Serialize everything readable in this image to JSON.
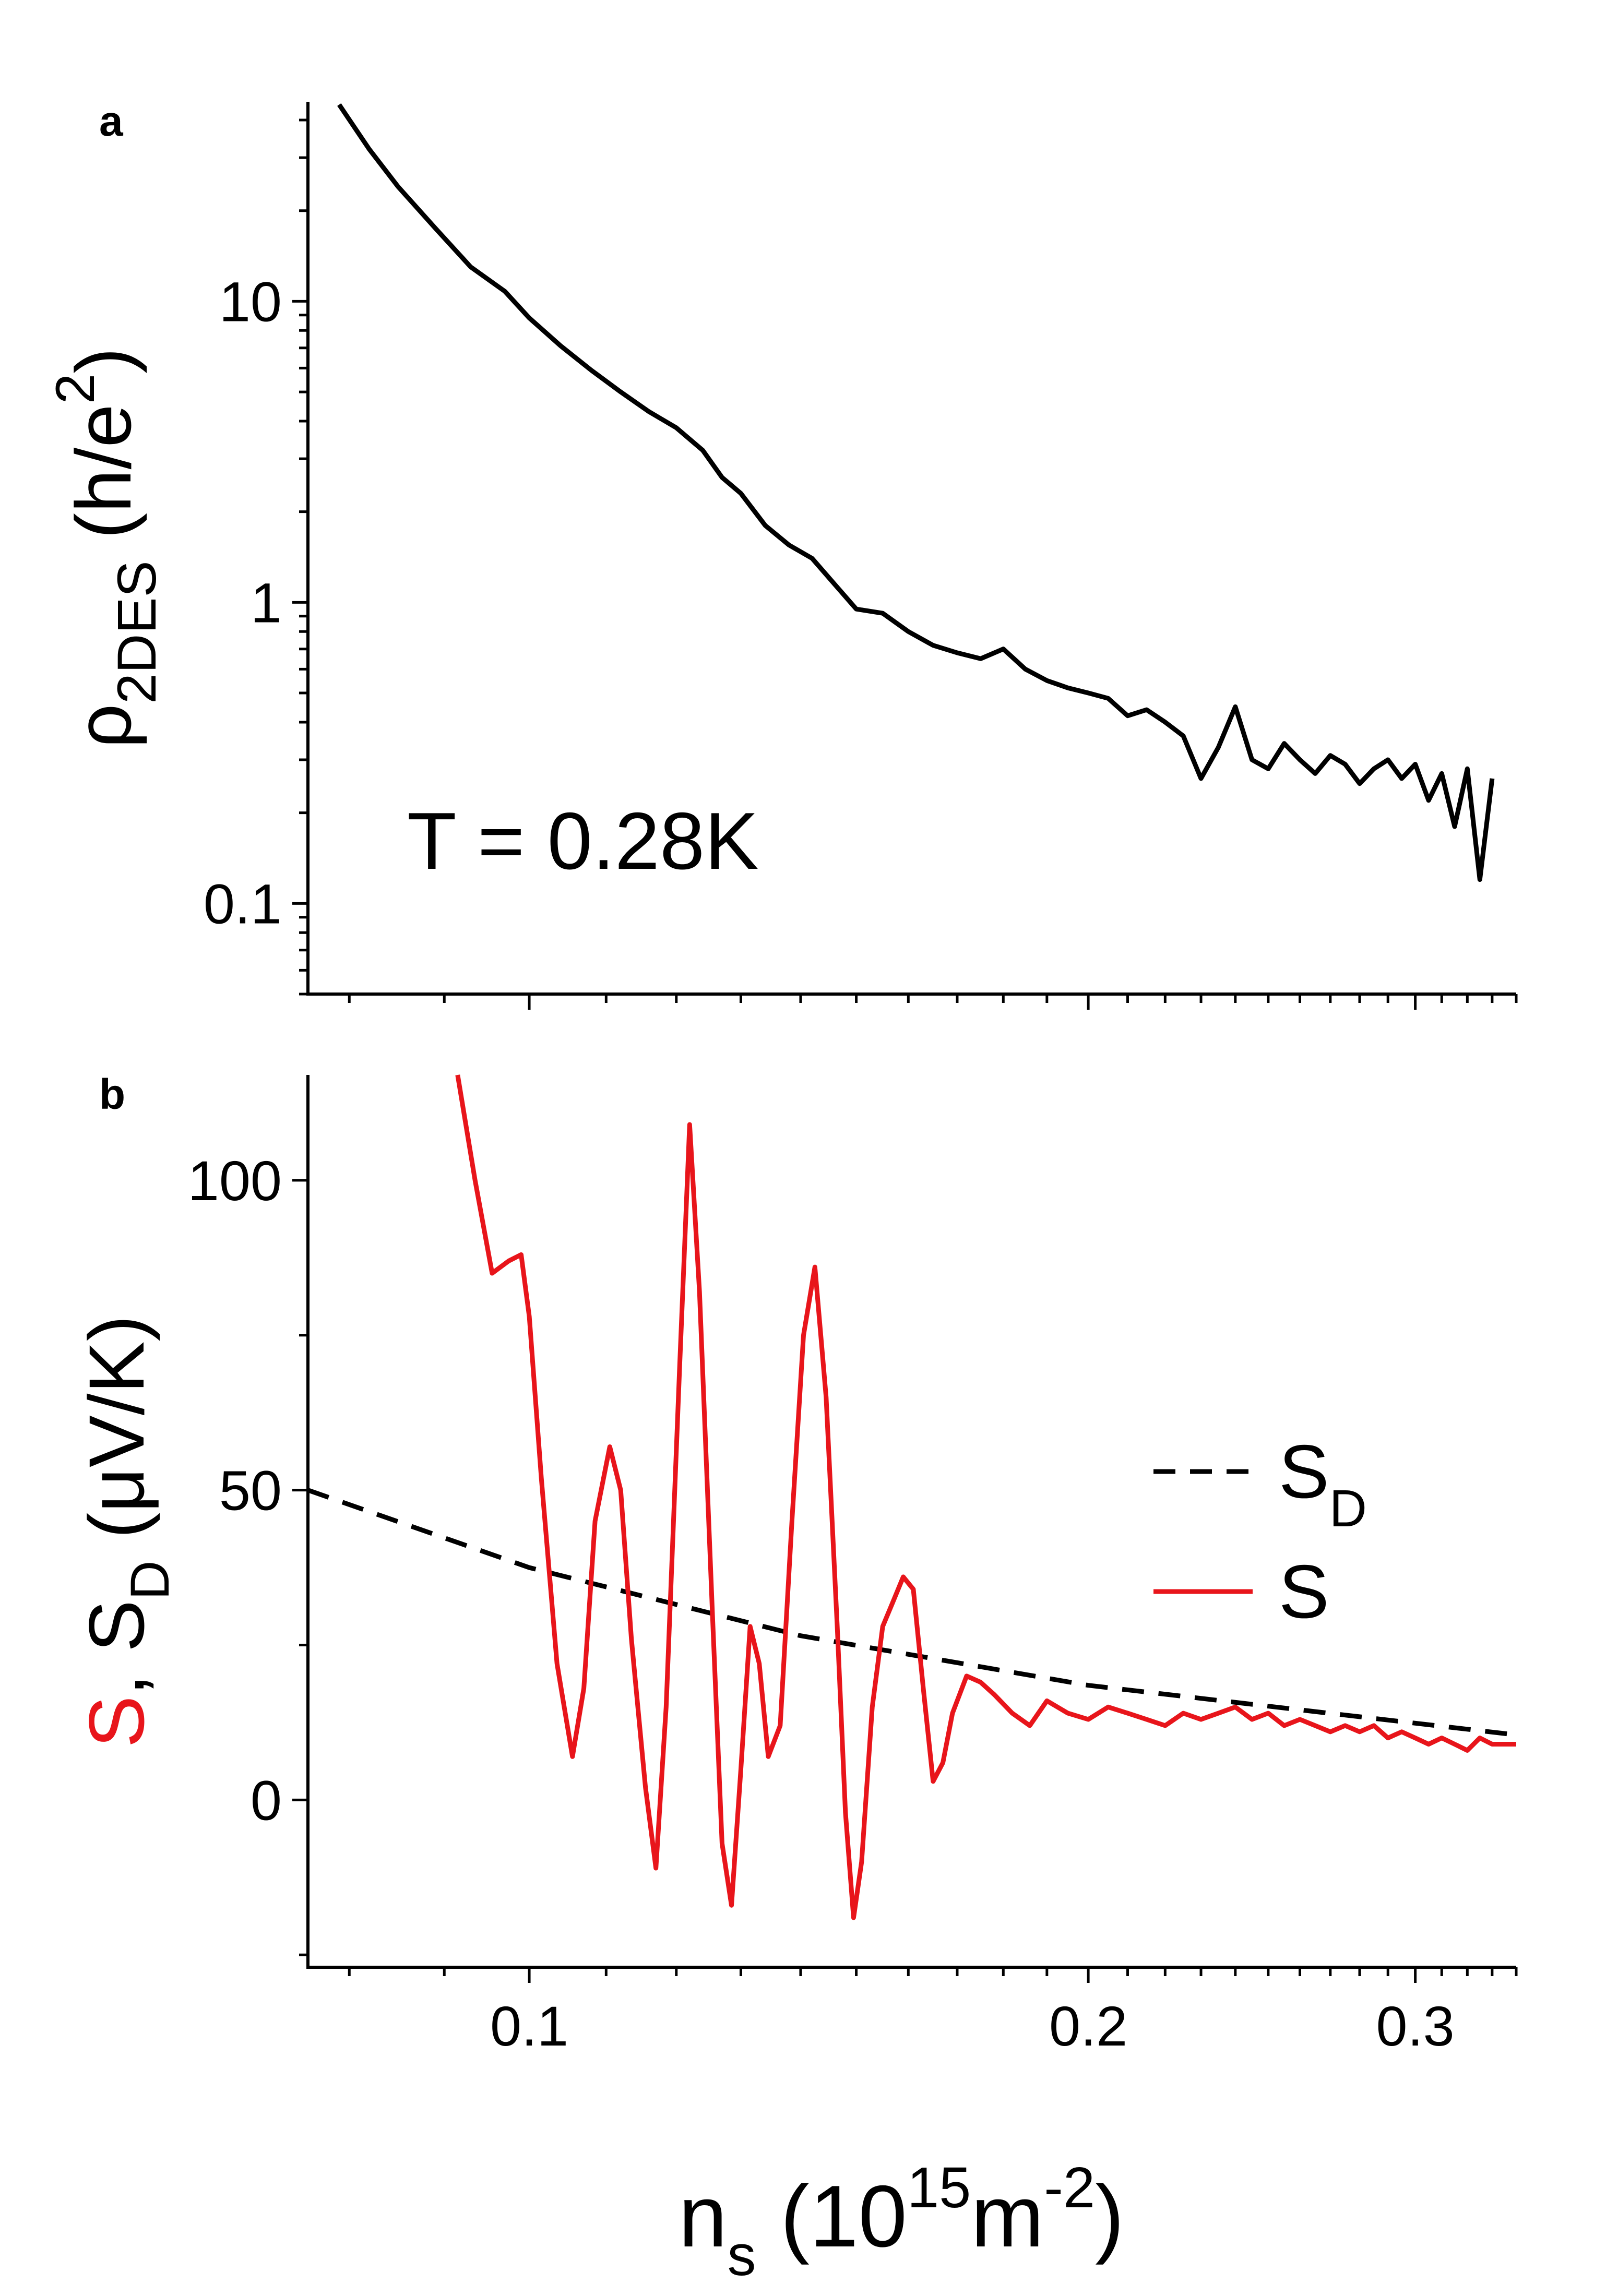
{
  "figure": {
    "x_axis_label": "n",
    "x_axis_label_sub": "s",
    "x_axis_label_unit_open": " (10",
    "x_axis_label_unit_exp": "15",
    "x_axis_label_unit_m": "m",
    "x_axis_label_unit_exp2": "-2",
    "x_axis_label_unit_close": ")"
  },
  "chart_data": [
    {
      "type": "line",
      "panel_label": "a",
      "ylabel": "ρ",
      "ylabel_sub": "2DES",
      "ylabel_unit_open": " (h/e",
      "ylabel_unit_exp": "2",
      "ylabel_unit_close": ")",
      "annotation": "T = 0.28K",
      "xscale": "log",
      "yscale": "log",
      "xlim": [
        0.076,
        0.34
      ],
      "ylim": [
        0.05,
        46
      ],
      "y_ticks": [
        {
          "value": 10,
          "label": "10"
        },
        {
          "value": 1,
          "label": "1"
        },
        {
          "value": 0.1,
          "label": "0.1"
        }
      ],
      "series": [
        {
          "name": "rho_2DES",
          "color": "#000000",
          "style": "solid",
          "x": [
            0.079,
            0.082,
            0.085,
            0.089,
            0.093,
            0.097,
            0.1,
            0.104,
            0.108,
            0.112,
            0.116,
            0.12,
            0.124,
            0.127,
            0.13,
            0.134,
            0.138,
            0.142,
            0.146,
            0.15,
            0.155,
            0.16,
            0.165,
            0.17,
            0.175,
            0.18,
            0.185,
            0.19,
            0.195,
            0.2,
            0.205,
            0.21,
            0.215,
            0.22,
            0.225,
            0.23,
            0.235,
            0.24,
            0.245,
            0.25,
            0.255,
            0.26,
            0.265,
            0.27,
            0.275,
            0.28,
            0.285,
            0.29,
            0.295,
            0.3,
            0.305,
            0.31,
            0.315,
            0.32,
            0.325,
            0.33
          ],
          "y": [
            45,
            32,
            24,
            17.5,
            13,
            10.8,
            8.8,
            7.1,
            5.9,
            5.0,
            4.3,
            3.8,
            3.2,
            2.6,
            2.3,
            1.8,
            1.55,
            1.4,
            1.15,
            0.95,
            0.92,
            0.8,
            0.72,
            0.68,
            0.65,
            0.7,
            0.6,
            0.55,
            0.52,
            0.5,
            0.48,
            0.42,
            0.44,
            0.4,
            0.36,
            0.26,
            0.33,
            0.45,
            0.3,
            0.28,
            0.34,
            0.3,
            0.27,
            0.31,
            0.29,
            0.25,
            0.28,
            0.3,
            0.26,
            0.29,
            0.22,
            0.27,
            0.18,
            0.28,
            0.12,
            0.26
          ]
        }
      ]
    },
    {
      "type": "line",
      "panel_label": "b",
      "ylabel_parts": [
        "S",
        ", S",
        "D",
        " (μV/K)"
      ],
      "ylabel_colors": [
        "#e8151b",
        "#000000"
      ],
      "xscale": "log",
      "yscale": "linear",
      "xlim": [
        0.076,
        0.34
      ],
      "ylim": [
        -27,
        117
      ],
      "x_ticks": [
        {
          "value": 0.1,
          "label": "0.1"
        },
        {
          "value": 0.2,
          "label": "0.2"
        },
        {
          "value": 0.3,
          "label": "0.3"
        }
      ],
      "y_ticks": [
        {
          "value": 100,
          "label": "100"
        },
        {
          "value": 50,
          "label": "50"
        },
        {
          "value": 0,
          "label": "0"
        }
      ],
      "legend_position": "right",
      "series": [
        {
          "name": "S_D",
          "legend_label": "S",
          "legend_sub": "D",
          "color": "#000000",
          "style": "dashed",
          "x": [
            0.076,
            0.1,
            0.14,
            0.2,
            0.34
          ],
          "y": [
            50,
            37.5,
            26.5,
            18.5,
            10.5
          ]
        },
        {
          "name": "S",
          "legend_label": "S",
          "color": "#e8151b",
          "style": "solid",
          "x": [
            0.0915,
            0.0935,
            0.0955,
            0.0975,
            0.099,
            0.1,
            0.1015,
            0.1035,
            0.1055,
            0.107,
            0.1085,
            0.1105,
            0.112,
            0.1135,
            0.1155,
            0.117,
            0.1185,
            0.1205,
            0.122,
            0.1235,
            0.1255,
            0.127,
            0.1285,
            0.13,
            0.1315,
            0.133,
            0.1345,
            0.1365,
            0.1385,
            0.1405,
            0.1425,
            0.1445,
            0.1465,
            0.148,
            0.1495,
            0.151,
            0.153,
            0.155,
            0.157,
            0.159,
            0.161,
            0.163,
            0.165,
            0.167,
            0.169,
            0.172,
            0.175,
            0.178,
            0.182,
            0.186,
            0.19,
            0.195,
            0.2,
            0.205,
            0.21,
            0.215,
            0.22,
            0.225,
            0.23,
            0.235,
            0.24,
            0.245,
            0.25,
            0.255,
            0.26,
            0.265,
            0.27,
            0.275,
            0.28,
            0.285,
            0.29,
            0.295,
            0.3,
            0.305,
            0.31,
            0.315,
            0.32,
            0.325,
            0.33,
            0.335,
            0.34
          ],
          "y": [
            117,
            100,
            85,
            87,
            88,
            78,
            52,
            22,
            7,
            18,
            45,
            57,
            50,
            26,
            2,
            -11,
            15,
            70,
            109,
            82,
            30,
            -7,
            -17,
            5,
            28,
            22,
            7,
            12,
            45,
            75,
            86,
            65,
            28,
            -2,
            -19,
            -10,
            15,
            28,
            32,
            36,
            34,
            18,
            3,
            6,
            14,
            20,
            19,
            17,
            14,
            12,
            16,
            14,
            13,
            15,
            14,
            13,
            12,
            14,
            13,
            14,
            15,
            13,
            14,
            12,
            13,
            12,
            11,
            12,
            11,
            12,
            10,
            11,
            10,
            9,
            10,
            9,
            8,
            10,
            9,
            9,
            9
          ]
        }
      ]
    }
  ]
}
